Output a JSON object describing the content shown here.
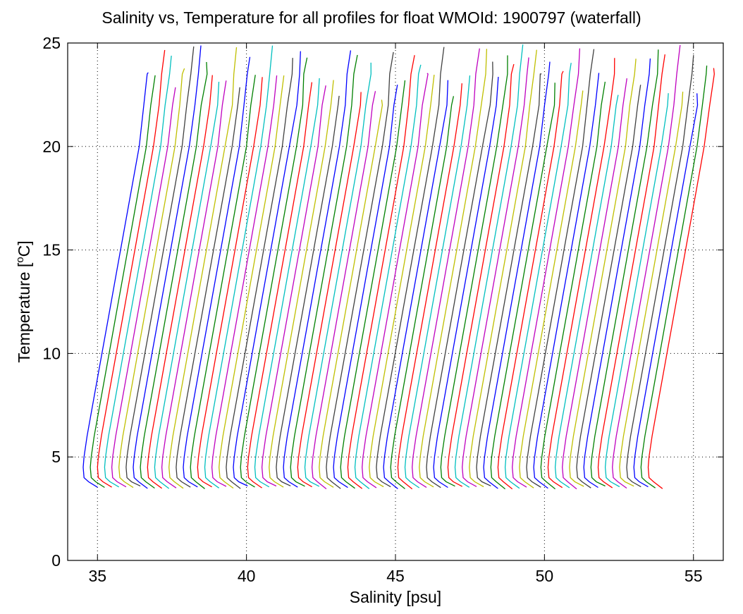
{
  "chart_data": {
    "type": "line",
    "title": "Salinity vs, Temperature for all profiles for float WMOId: 1900797 (waterfall)",
    "xlabel": "Salinity [psu]",
    "ylabel_main": "Temperature [",
    "ylabel_sup": "o",
    "ylabel_end": "C]",
    "xlim": [
      34,
      56
    ],
    "ylim": [
      0,
      25
    ],
    "xticks": [
      35,
      40,
      45,
      50,
      55
    ],
    "yticks": [
      0,
      5,
      10,
      15,
      20,
      25
    ],
    "grid": true,
    "legend": "none",
    "colors": [
      "#0000ff",
      "#008000",
      "#ff0000",
      "#00bfbf",
      "#bf00bf",
      "#bfbf00",
      "#404040"
    ],
    "profile_count": 80,
    "first_profile_offset": 35.0,
    "profile_spacing_psu": 0.24,
    "base_profile": {
      "temperature": [
        3.5,
        3.8,
        4.0,
        4.5,
        5.0,
        6.0,
        8.0,
        10.0,
        12.0,
        14.0,
        16.0,
        18.0,
        20.0,
        22.0,
        23.5,
        25.0
      ],
      "salinity_offset": [
        0.0,
        -0.3,
        -0.45,
        -0.48,
        -0.45,
        -0.35,
        -0.1,
        0.15,
        0.4,
        0.65,
        0.9,
        1.15,
        1.4,
        1.6,
        1.7,
        1.8
      ]
    }
  }
}
